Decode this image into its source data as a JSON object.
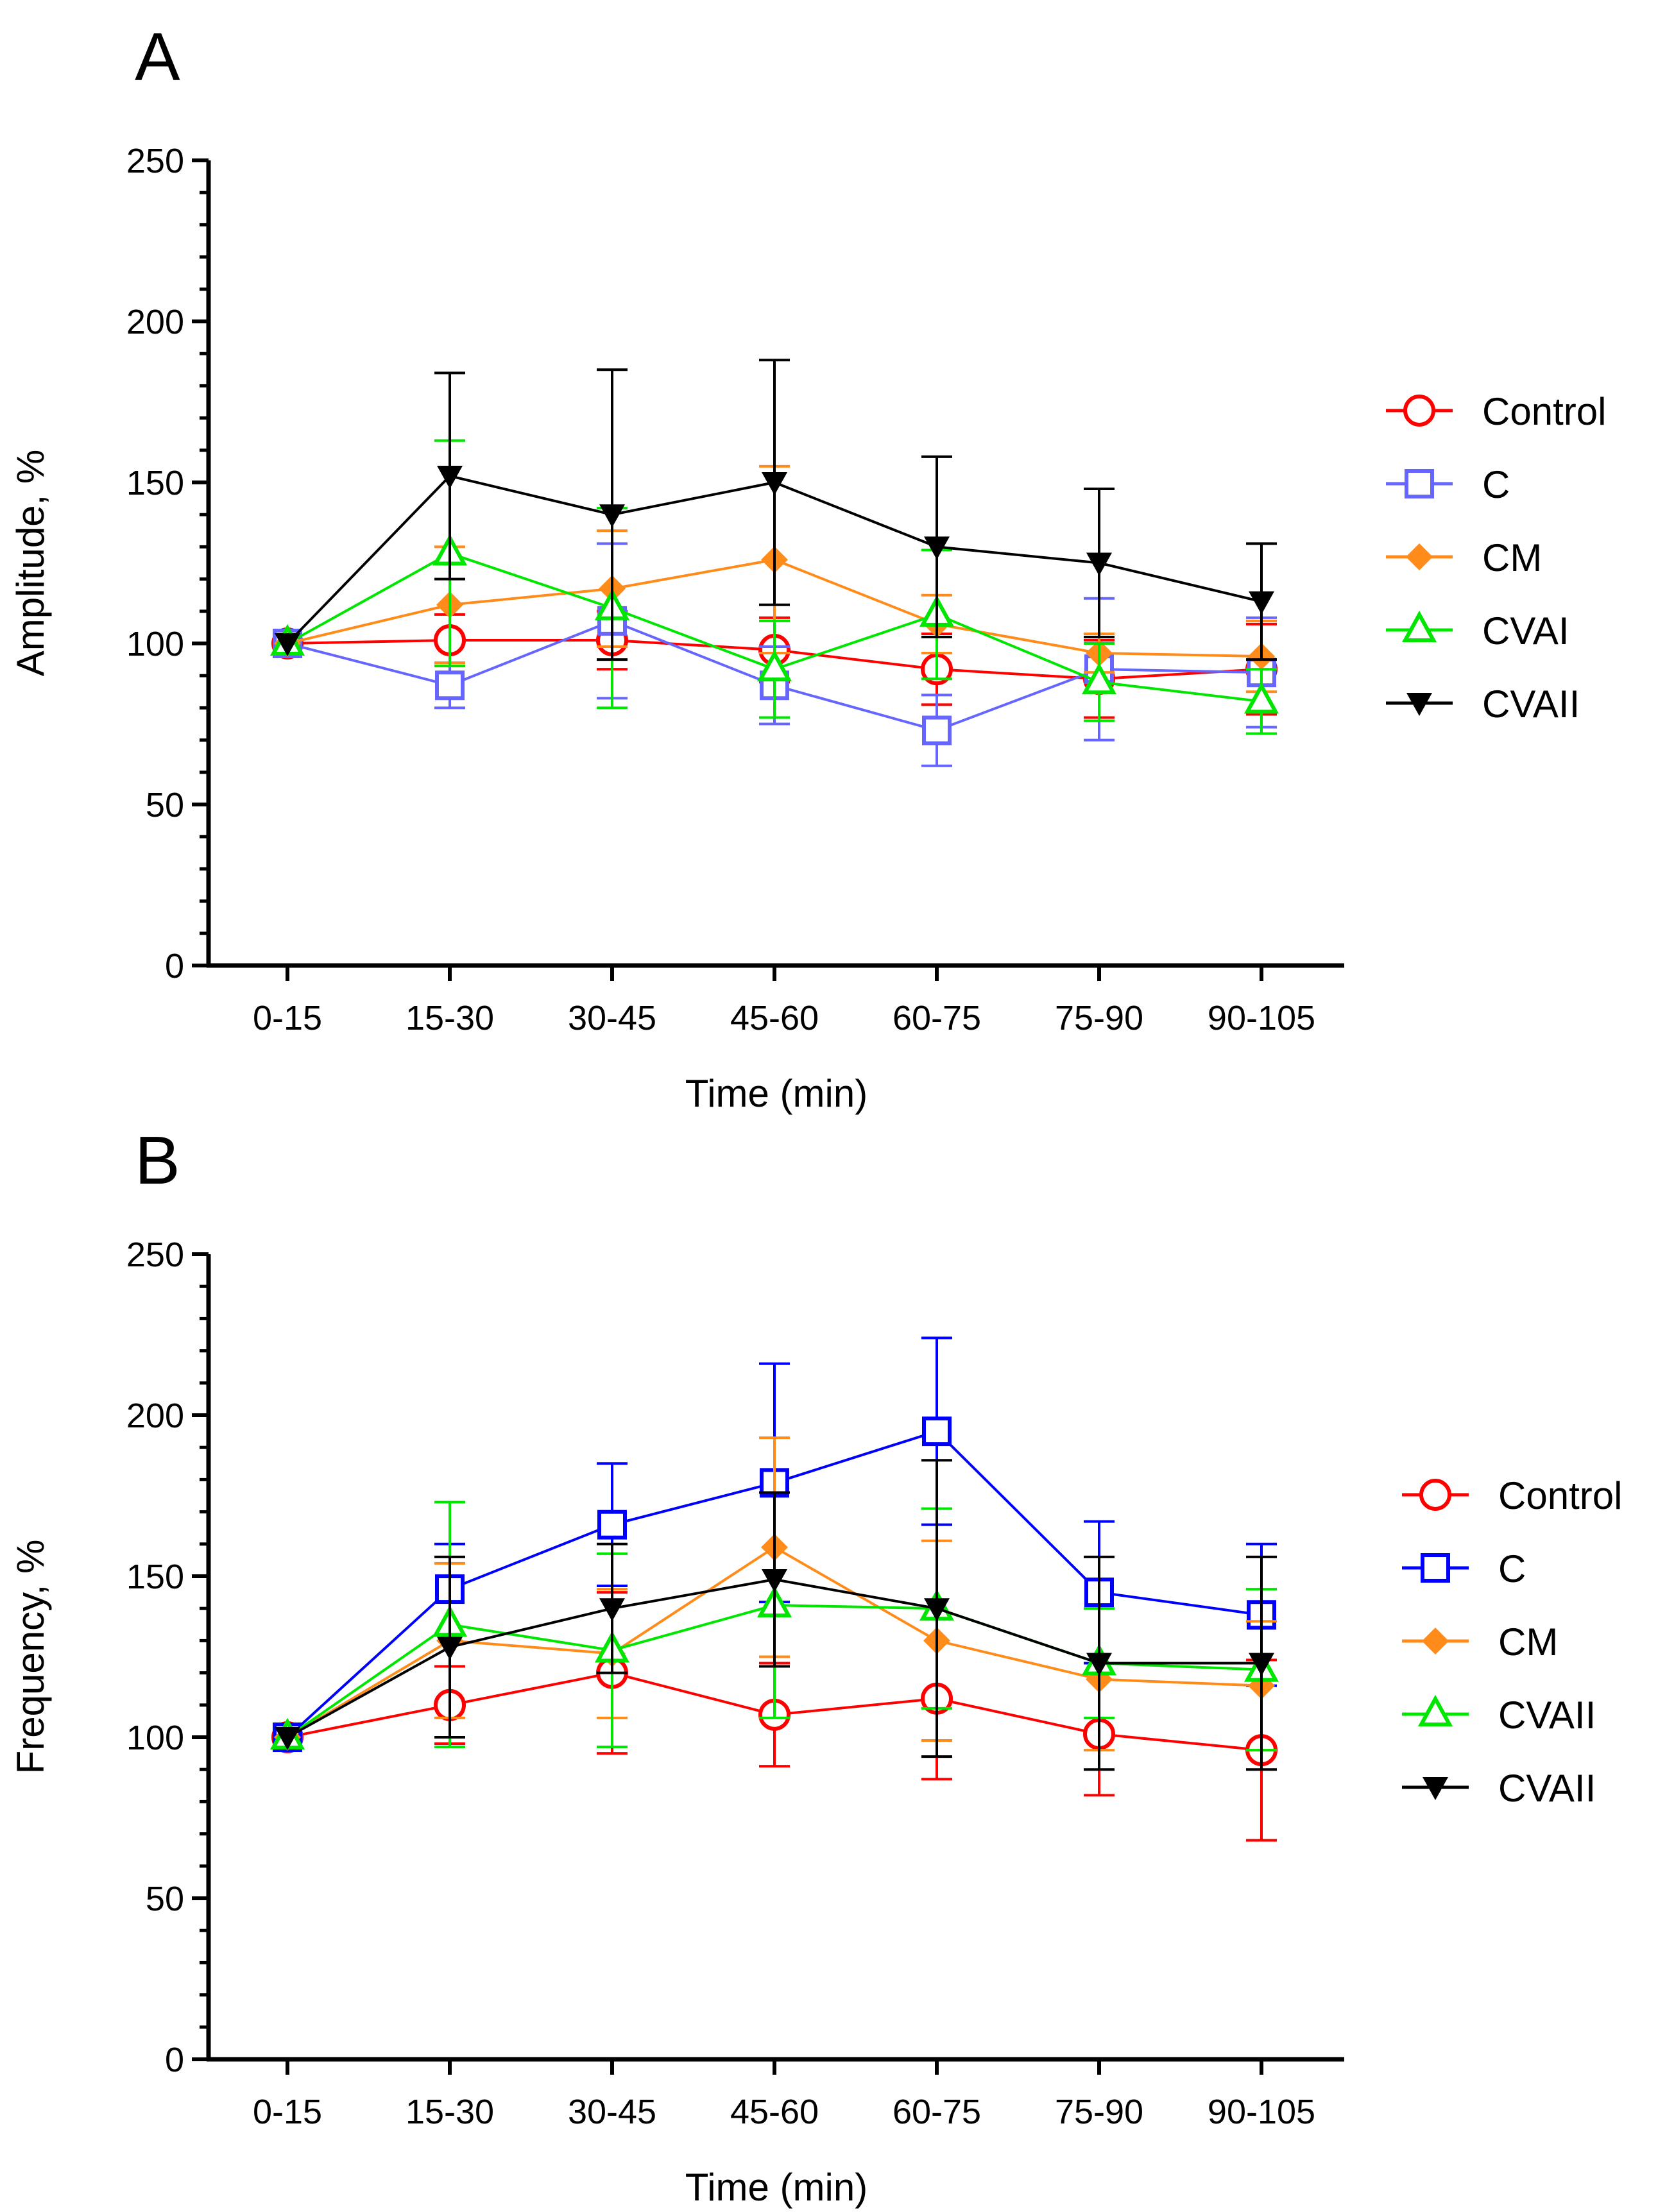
{
  "chart_data": [
    {
      "type": "line",
      "panel_label": "A",
      "xlabel": "Time (min)",
      "ylabel": "Amplitude, %",
      "ylim": [
        0,
        250
      ],
      "yticks": [
        0,
        50,
        100,
        150,
        200,
        250
      ],
      "categories": [
        "0-15",
        "15-30",
        "30-45",
        "45-60",
        "60-75",
        "75-90",
        "90-105"
      ],
      "legend_position": "right",
      "series": [
        {
          "name": "Control",
          "color": "#ff0000",
          "marker": "circle-open",
          "values": [
            100,
            101,
            101,
            98,
            92,
            89,
            92
          ],
          "errors": [
            0,
            8,
            9,
            10,
            11,
            12,
            14
          ]
        },
        {
          "name": "C",
          "color": "#6666ff",
          "marker": "square-open",
          "values": [
            100,
            87,
            107,
            87,
            73,
            92,
            91
          ],
          "errors": [
            0,
            7,
            24,
            12,
            11,
            22,
            17
          ]
        },
        {
          "name": "CM",
          "color": "#ff8c1a",
          "marker": "diamond-filled",
          "values": [
            100,
            112,
            117,
            126,
            106,
            97,
            96
          ],
          "errors": [
            0,
            18,
            18,
            29,
            9,
            6,
            11
          ]
        },
        {
          "name": "CVAI",
          "color": "#00e600",
          "marker": "triangle-up-open",
          "values": [
            100,
            128,
            111,
            92,
            109,
            88,
            82
          ],
          "errors": [
            0,
            35,
            31,
            15,
            20,
            12,
            10
          ]
        },
        {
          "name": "CVAII",
          "color": "#000000",
          "marker": "triangle-down-filled",
          "values": [
            100,
            152,
            140,
            150,
            130,
            125,
            113
          ],
          "errors": [
            0,
            32,
            45,
            38,
            28,
            23,
            18
          ]
        }
      ]
    },
    {
      "type": "line",
      "panel_label": "B",
      "xlabel": "Time (min)",
      "ylabel": "Frequency, %",
      "ylim": [
        0,
        250
      ],
      "yticks": [
        0,
        50,
        100,
        150,
        200,
        250
      ],
      "categories": [
        "0-15",
        "15-30",
        "30-45",
        "45-60",
        "60-75",
        "75-90",
        "90-105"
      ],
      "legend_position": "right",
      "series": [
        {
          "name": "Control",
          "color": "#ff0000",
          "marker": "circle-open",
          "values": [
            100,
            110,
            120,
            107,
            112,
            101,
            96
          ],
          "errors": [
            0,
            12,
            25,
            16,
            25,
            19,
            28
          ]
        },
        {
          "name": "C",
          "color": "#0000ff",
          "marker": "square-open",
          "values": [
            100,
            146,
            166,
            179,
            195,
            145,
            138
          ],
          "errors": [
            0,
            14,
            19,
            37,
            29,
            22,
            22
          ]
        },
        {
          "name": "CM",
          "color": "#ff8c1a",
          "marker": "diamond-filled",
          "values": [
            100,
            130,
            126,
            159,
            130,
            118,
            116
          ],
          "errors": [
            0,
            24,
            20,
            34,
            31,
            22,
            20
          ]
        },
        {
          "name": "CVAII",
          "color": "#00e600",
          "marker": "triangle-up-open",
          "values": [
            100,
            135,
            127,
            141,
            140,
            123,
            121
          ],
          "errors": [
            0,
            38,
            30,
            35,
            31,
            17,
            25
          ]
        },
        {
          "name": "CVAII",
          "color": "#000000",
          "marker": "triangle-down-filled",
          "values": [
            100,
            128,
            140,
            149,
            140,
            123,
            123
          ],
          "errors": [
            0,
            28,
            20,
            27,
            46,
            33,
            33
          ]
        }
      ]
    }
  ]
}
